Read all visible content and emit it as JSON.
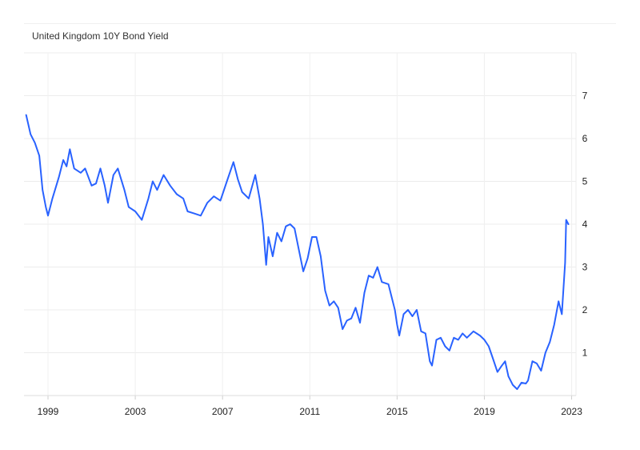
{
  "chart_data": {
    "type": "line",
    "title": "United Kingdom 10Y Bond Yield",
    "xlabel": "",
    "ylabel": "",
    "xlim": [
      1997.9,
      2023.2
    ],
    "ylim": [
      0,
      8
    ],
    "x_ticks": [
      1999,
      2003,
      2007,
      2011,
      2015,
      2019,
      2023
    ],
    "y_ticks": [
      1,
      2,
      3,
      4,
      5,
      6,
      7
    ],
    "grid": true,
    "y_axis_side": "right",
    "series": [
      {
        "color": "#2962ff",
        "points": [
          [
            1998.0,
            6.55
          ],
          [
            1998.2,
            6.1
          ],
          [
            1998.4,
            5.9
          ],
          [
            1998.6,
            5.6
          ],
          [
            1998.75,
            4.8
          ],
          [
            1998.9,
            4.4
          ],
          [
            1999.0,
            4.2
          ],
          [
            1999.2,
            4.6
          ],
          [
            1999.5,
            5.1
          ],
          [
            1999.7,
            5.5
          ],
          [
            1999.85,
            5.35
          ],
          [
            2000.0,
            5.75
          ],
          [
            2000.2,
            5.3
          ],
          [
            2000.5,
            5.2
          ],
          [
            2000.7,
            5.3
          ],
          [
            2001.0,
            4.9
          ],
          [
            2001.2,
            4.95
          ],
          [
            2001.4,
            5.3
          ],
          [
            2001.6,
            4.9
          ],
          [
            2001.75,
            4.5
          ],
          [
            2002.0,
            5.15
          ],
          [
            2002.2,
            5.3
          ],
          [
            2002.5,
            4.8
          ],
          [
            2002.7,
            4.4
          ],
          [
            2003.0,
            4.3
          ],
          [
            2003.3,
            4.1
          ],
          [
            2003.6,
            4.6
          ],
          [
            2003.8,
            5.0
          ],
          [
            2004.0,
            4.8
          ],
          [
            2004.3,
            5.15
          ],
          [
            2004.6,
            4.9
          ],
          [
            2004.9,
            4.7
          ],
          [
            2005.2,
            4.6
          ],
          [
            2005.4,
            4.3
          ],
          [
            2005.7,
            4.25
          ],
          [
            2006.0,
            4.2
          ],
          [
            2006.3,
            4.5
          ],
          [
            2006.6,
            4.65
          ],
          [
            2006.9,
            4.55
          ],
          [
            2007.2,
            5.0
          ],
          [
            2007.5,
            5.45
          ],
          [
            2007.7,
            5.05
          ],
          [
            2007.9,
            4.75
          ],
          [
            2008.2,
            4.6
          ],
          [
            2008.5,
            5.15
          ],
          [
            2008.7,
            4.6
          ],
          [
            2008.85,
            4.0
          ],
          [
            2009.0,
            3.05
          ],
          [
            2009.1,
            3.7
          ],
          [
            2009.3,
            3.25
          ],
          [
            2009.5,
            3.8
          ],
          [
            2009.7,
            3.6
          ],
          [
            2009.9,
            3.95
          ],
          [
            2010.1,
            4.0
          ],
          [
            2010.3,
            3.9
          ],
          [
            2010.5,
            3.4
          ],
          [
            2010.7,
            2.9
          ],
          [
            2010.9,
            3.2
          ],
          [
            2011.1,
            3.7
          ],
          [
            2011.3,
            3.7
          ],
          [
            2011.5,
            3.25
          ],
          [
            2011.7,
            2.45
          ],
          [
            2011.9,
            2.1
          ],
          [
            2012.1,
            2.2
          ],
          [
            2012.3,
            2.05
          ],
          [
            2012.5,
            1.55
          ],
          [
            2012.7,
            1.75
          ],
          [
            2012.9,
            1.8
          ],
          [
            2013.1,
            2.05
          ],
          [
            2013.3,
            1.7
          ],
          [
            2013.5,
            2.4
          ],
          [
            2013.7,
            2.8
          ],
          [
            2013.9,
            2.75
          ],
          [
            2014.1,
            3.0
          ],
          [
            2014.3,
            2.65
          ],
          [
            2014.6,
            2.6
          ],
          [
            2014.9,
            2.0
          ],
          [
            2015.0,
            1.65
          ],
          [
            2015.1,
            1.4
          ],
          [
            2015.3,
            1.9
          ],
          [
            2015.5,
            2.0
          ],
          [
            2015.7,
            1.85
          ],
          [
            2015.9,
            2.0
          ],
          [
            2016.1,
            1.5
          ],
          [
            2016.3,
            1.45
          ],
          [
            2016.5,
            0.8
          ],
          [
            2016.6,
            0.7
          ],
          [
            2016.8,
            1.3
          ],
          [
            2017.0,
            1.35
          ],
          [
            2017.2,
            1.15
          ],
          [
            2017.4,
            1.05
          ],
          [
            2017.6,
            1.35
          ],
          [
            2017.8,
            1.3
          ],
          [
            2018.0,
            1.45
          ],
          [
            2018.2,
            1.35
          ],
          [
            2018.5,
            1.5
          ],
          [
            2018.8,
            1.4
          ],
          [
            2019.0,
            1.3
          ],
          [
            2019.2,
            1.15
          ],
          [
            2019.4,
            0.85
          ],
          [
            2019.6,
            0.55
          ],
          [
            2019.8,
            0.7
          ],
          [
            2019.95,
            0.8
          ],
          [
            2020.1,
            0.45
          ],
          [
            2020.3,
            0.25
          ],
          [
            2020.5,
            0.15
          ],
          [
            2020.7,
            0.3
          ],
          [
            2020.9,
            0.28
          ],
          [
            2021.0,
            0.35
          ],
          [
            2021.2,
            0.8
          ],
          [
            2021.4,
            0.75
          ],
          [
            2021.6,
            0.58
          ],
          [
            2021.8,
            1.0
          ],
          [
            2022.0,
            1.25
          ],
          [
            2022.2,
            1.65
          ],
          [
            2022.4,
            2.2
          ],
          [
            2022.55,
            1.9
          ],
          [
            2022.7,
            3.1
          ],
          [
            2022.75,
            4.1
          ],
          [
            2022.85,
            4.0
          ]
        ]
      }
    ]
  }
}
